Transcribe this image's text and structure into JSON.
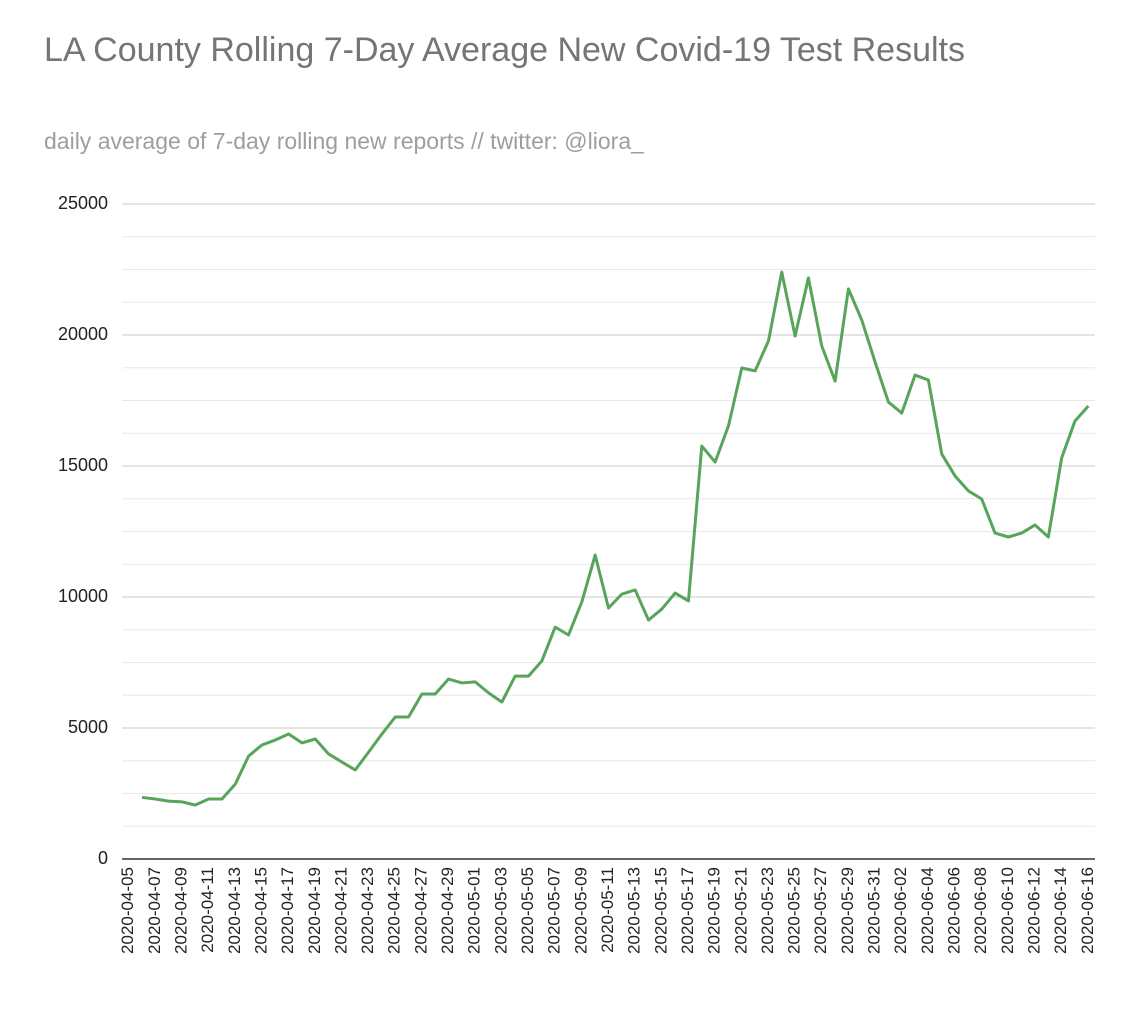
{
  "chart_data": {
    "type": "line",
    "title": "LA County Rolling 7-Day Average New Covid-19 Test Results",
    "subtitle": "daily average of 7-day rolling new reports // twitter: @liora_",
    "categories": [
      "2020-04-05",
      null,
      "2020-04-07",
      null,
      "2020-04-09",
      null,
      "2020-04-11",
      null,
      "2020-04-13",
      null,
      "2020-04-15",
      null,
      "2020-04-17",
      null,
      "2020-04-19",
      null,
      "2020-04-21",
      null,
      "2020-04-23",
      null,
      "2020-04-25",
      null,
      "2020-04-27",
      null,
      "2020-04-29",
      null,
      "2020-05-01",
      null,
      "2020-05-03",
      null,
      "2020-05-05",
      null,
      "2020-05-07",
      null,
      "2020-05-09",
      null,
      "2020-05-11",
      null,
      "2020-05-13",
      null,
      "2020-05-15",
      null,
      "2020-05-17",
      null,
      "2020-05-19",
      null,
      "2020-05-21",
      null,
      "2020-05-23",
      null,
      "2020-05-25",
      null,
      "2020-05-27",
      null,
      "2020-05-29",
      null,
      "2020-05-31",
      null,
      "2020-06-02",
      null,
      "2020-06-04",
      null,
      "2020-06-06",
      null,
      "2020-06-08",
      null,
      "2020-06-10",
      null,
      "2020-06-12",
      null,
      "2020-06-14",
      null,
      "2020-06-16"
    ],
    "values": [
      null,
      2350,
      2290,
      2210,
      2180,
      2060,
      2290,
      2290,
      2860,
      3930,
      4350,
      4540,
      4770,
      4430,
      4580,
      4010,
      3700,
      3400,
      4080,
      4770,
      5420,
      5420,
      6300,
      6300,
      6870,
      6720,
      6760,
      6340,
      5990,
      6980,
      6980,
      7560,
      8850,
      8550,
      9810,
      11600,
      9580,
      10110,
      10270,
      9120,
      9540,
      10150,
      9850,
      15760,
      15150,
      16530,
      18740,
      18630,
      19770,
      22400,
      19960,
      22180,
      19580,
      18240,
      21760,
      20570,
      18970,
      17440,
      17020,
      18470,
      18280,
      15460,
      14620,
      14050,
      13740,
      12440,
      12290,
      12440,
      12750,
      12290,
      15310,
      16720,
      17290
    ],
    "color": "#57a55a",
    "ylim": [
      0,
      25000
    ],
    "yticks": [
      0,
      5000,
      10000,
      15000,
      20000,
      25000
    ],
    "minor_yticks": [
      1250,
      2500,
      3750,
      6250,
      7500,
      8750,
      11250,
      12500,
      13750,
      16250,
      17500,
      18750,
      21250,
      22500,
      23750
    ],
    "grid": true
  }
}
